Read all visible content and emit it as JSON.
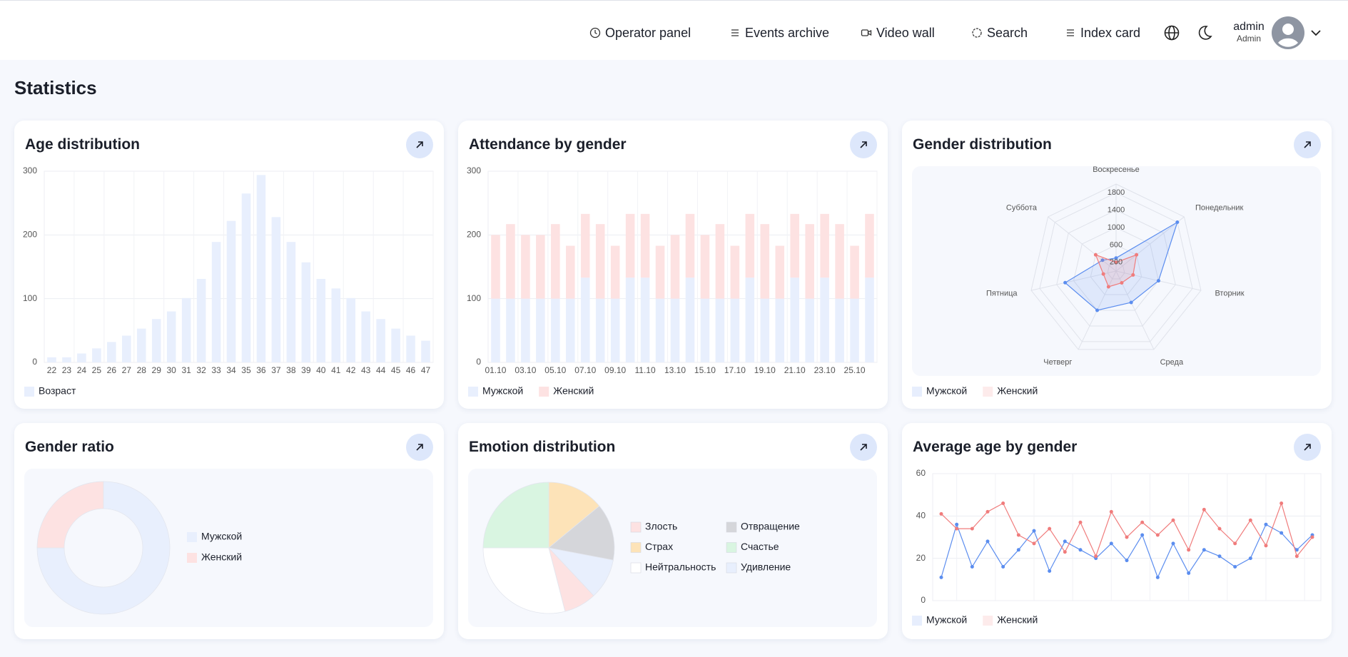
{
  "header": {
    "nav": [
      "Operator panel",
      "Events archive",
      "Video wall",
      "Search",
      "Index card"
    ],
    "user": {
      "name": "admin",
      "role": "Admin"
    }
  },
  "page_title": "Statistics",
  "chart_data": [
    {
      "type": "bar",
      "title": "Age distribution",
      "categories": [
        "22",
        "23",
        "24",
        "25",
        "26",
        "27",
        "28",
        "29",
        "30",
        "31",
        "32",
        "33",
        "34",
        "35",
        "36",
        "37",
        "38",
        "39",
        "40",
        "41",
        "42",
        "43",
        "44",
        "45",
        "46",
        "47"
      ],
      "series": [
        {
          "name": "Возраст",
          "color": "#e8effd",
          "values": [
            8,
            8,
            14,
            22,
            32,
            42,
            53,
            68,
            80,
            101,
            131,
            189,
            222,
            265,
            294,
            228,
            189,
            157,
            131,
            116,
            101,
            80,
            68,
            53,
            42,
            34
          ]
        }
      ],
      "ylim": [
        0,
        300
      ],
      "yticks": [
        0,
        100,
        200,
        300
      ],
      "grid": true
    },
    {
      "type": "stacked_bar",
      "title": "Attendance by gender",
      "categories": [
        "01.10",
        null,
        "03.10",
        null,
        "05.10",
        null,
        "07.10",
        null,
        "09.10",
        null,
        "11.10",
        null,
        "13.10",
        null,
        "15.10",
        null,
        "17.10",
        null,
        "19.10",
        null,
        "21.10",
        null,
        "23.10",
        null,
        "25.10",
        null
      ],
      "series": [
        {
          "name": "Мужской",
          "color": "#e8effd",
          "values": [
            100,
            100,
            100,
            100,
            100,
            100,
            133,
            100,
            100,
            133,
            133,
            100,
            100,
            133,
            100,
            100,
            100,
            133,
            100,
            100,
            133,
            100,
            133,
            100,
            100,
            133
          ]
        },
        {
          "name": "Женский",
          "color": "#fde2e2",
          "values": [
            100,
            117,
            100,
            100,
            117,
            83,
            100,
            117,
            83,
            100,
            100,
            83,
            100,
            100,
            100,
            117,
            83,
            100,
            117,
            83,
            100,
            117,
            100,
            117,
            83,
            100
          ]
        }
      ],
      "ylim": [
        0,
        300
      ],
      "yticks": [
        0,
        100,
        200,
        300
      ],
      "grid": true
    },
    {
      "type": "radar",
      "title": "Gender distribution",
      "categories": [
        "Воскресенье",
        "Понедельник",
        "Вторник",
        "Среда",
        "Четверг",
        "Пятница",
        "Суббота"
      ],
      "series": [
        {
          "name": "Мужской",
          "color": "#5b8def",
          "values": [
            300,
            1800,
            1000,
            800,
            1000,
            1200,
            400
          ]
        },
        {
          "name": "Женский",
          "color": "#f07c7c",
          "values": [
            200,
            600,
            400,
            300,
            400,
            300,
            600
          ]
        }
      ],
      "ylim": [
        0,
        2000
      ],
      "yticks": [
        200,
        600,
        1000,
        1400,
        1800
      ],
      "grid": true
    },
    {
      "type": "donut",
      "title": "Gender ratio",
      "categories": [
        "Мужской",
        "Женский"
      ],
      "values": [
        75,
        25
      ],
      "colors": [
        "#e8effd",
        "#fde2e2"
      ]
    },
    {
      "type": "pie",
      "title": "Emotion distribution",
      "categories": [
        "Злость",
        "Страх",
        "Нейтральность",
        "Отвращение",
        "Счастье",
        "Удивление"
      ],
      "values": [
        8,
        14,
        29,
        14,
        25,
        10
      ],
      "colors": [
        "#fde2e2",
        "#fde3b8",
        "#ffffff",
        "#d5d6da",
        "#d9f5e1",
        "#e8effd"
      ]
    },
    {
      "type": "line",
      "title": "Average age by gender",
      "categories": [
        null,
        null,
        null,
        null,
        null,
        null,
        null,
        null,
        null,
        null,
        null,
        null,
        null,
        null,
        null,
        null,
        null,
        null,
        null,
        null,
        null,
        null,
        null,
        null,
        null
      ],
      "series": [
        {
          "name": "Мужской",
          "color": "#5b8def",
          "values": [
            11,
            36,
            16,
            28,
            16,
            24,
            33,
            14,
            28,
            24,
            20,
            27,
            19,
            31,
            11,
            27,
            13,
            24,
            21,
            16,
            20,
            36,
            32,
            24,
            31
          ]
        },
        {
          "name": "Женский",
          "color": "#f07c7c",
          "values": [
            41,
            34,
            34,
            42,
            46,
            31,
            27,
            34,
            23,
            37,
            21,
            42,
            30,
            37,
            31,
            38,
            24,
            43,
            34,
            27,
            38,
            26,
            46,
            21,
            30
          ]
        }
      ],
      "ylim": [
        0,
        60
      ],
      "yticks": [
        0,
        20,
        40,
        60
      ],
      "grid": true
    }
  ]
}
